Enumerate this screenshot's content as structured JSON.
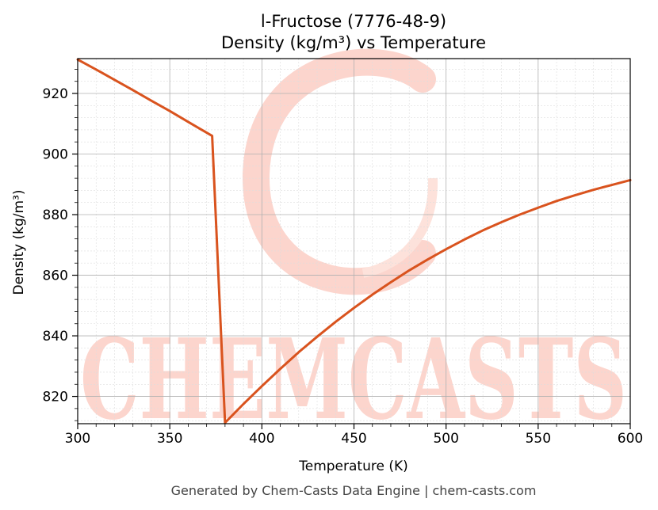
{
  "colors": {
    "line": "#d9531e",
    "watermark": "#fcd5cd",
    "grid_major": "#b0b0b0",
    "grid_minor": "#dddddd"
  },
  "watermark": {
    "text": "CHEMCASTS"
  },
  "footer": "Generated by Chem-Casts Data Engine | chem-casts.com",
  "chart_data": {
    "type": "line",
    "title": "l-Fructose (7776-48-9)",
    "subtitle": "Density (kg/m³) vs Temperature",
    "xlabel": "Temperature (K)",
    "ylabel": "Density (kg/m³)",
    "xlim": [
      300,
      600
    ],
    "ylim": [
      811,
      931.5
    ],
    "xticks": [
      300,
      350,
      400,
      450,
      500,
      550,
      600
    ],
    "yticks": [
      820,
      840,
      860,
      880,
      900,
      920
    ],
    "grid": true,
    "series": [
      {
        "values": [
          [
            300,
            931.2
          ],
          [
            310,
            927.9
          ],
          [
            320,
            924.5
          ],
          [
            330,
            921.1
          ],
          [
            340,
            917.6
          ],
          [
            350,
            914.2
          ],
          [
            360,
            910.6
          ],
          [
            373,
            906.0
          ],
          [
            380,
            811.3
          ],
          [
            390,
            817.5
          ],
          [
            400,
            823.4
          ],
          [
            410,
            829.1
          ],
          [
            420,
            834.6
          ],
          [
            430,
            839.7
          ],
          [
            440,
            844.6
          ],
          [
            450,
            849.2
          ],
          [
            460,
            853.6
          ],
          [
            470,
            857.7
          ],
          [
            480,
            861.6
          ],
          [
            490,
            865.2
          ],
          [
            500,
            868.6
          ],
          [
            510,
            871.8
          ],
          [
            520,
            874.8
          ],
          [
            530,
            877.5
          ],
          [
            540,
            880.0
          ],
          [
            550,
            882.3
          ],
          [
            560,
            884.5
          ],
          [
            570,
            886.4
          ],
          [
            580,
            888.2
          ],
          [
            590,
            889.8
          ],
          [
            600,
            891.4
          ]
        ]
      }
    ]
  }
}
